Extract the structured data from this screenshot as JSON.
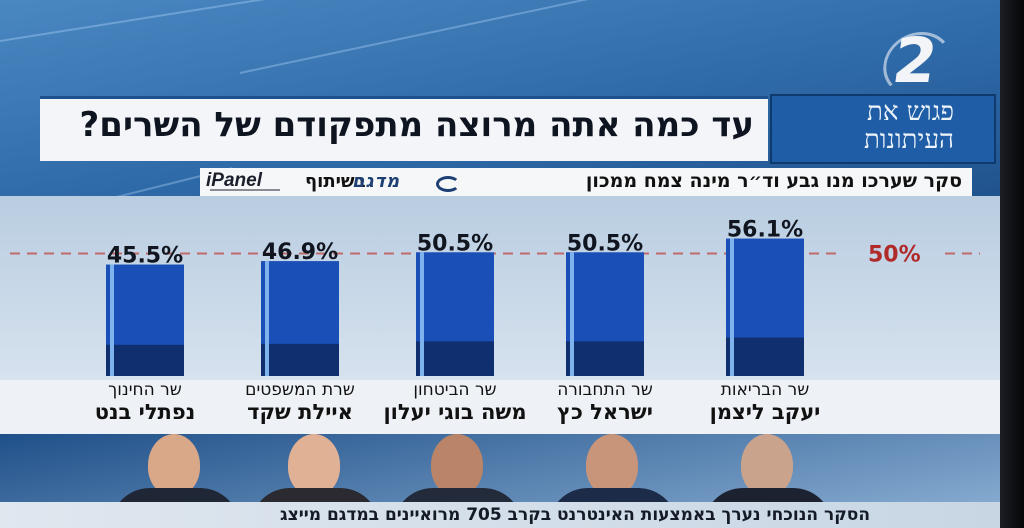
{
  "channel": {
    "logo": "2"
  },
  "show": {
    "name": "פגוש את העיתונות"
  },
  "survey": {
    "by": "סקר שערכו מנו גבע וד״ר מינה צמח ממכון",
    "partner": "בשיתוף",
    "pollster_logo": "מדגם",
    "panel_logo": "iPanel"
  },
  "footer": {
    "text": "הסקר הנוכחי נערך באמצעות האינטרנט בקרב 705 מרואיינים במדגם מייצג"
  },
  "colors": {
    "bar_main": "#1b4fb8",
    "bar_dark": "#0f2f6e",
    "bar_edge": "#7fb3ee",
    "ref_line": "#c06a6a",
    "ref_text": "#b02a2a"
  },
  "chart_data": {
    "type": "bar",
    "title": "עד כמה אתה מרוצה מתפקודם של השרים?",
    "categories": [
      {
        "role": "שר הבריאות",
        "name": "יעקב ליצמן"
      },
      {
        "role": "שר התחבורה",
        "name": "ישראל כץ"
      },
      {
        "role": "שר הביטחון",
        "name": "משה בוגי יעלון"
      },
      {
        "role": "שרת המשפטים",
        "name": "איילת שקד"
      },
      {
        "role": "שר החינוך",
        "name": "נפתלי בנט"
      }
    ],
    "values": [
      56.1,
      50.5,
      50.5,
      46.9,
      45.5
    ],
    "value_labels": [
      "56.1%",
      "50.5%",
      "50.5%",
      "46.9%",
      "45.5%"
    ],
    "reference_line": {
      "value": 50,
      "label": "50%"
    },
    "grid": false,
    "legend": "none"
  }
}
